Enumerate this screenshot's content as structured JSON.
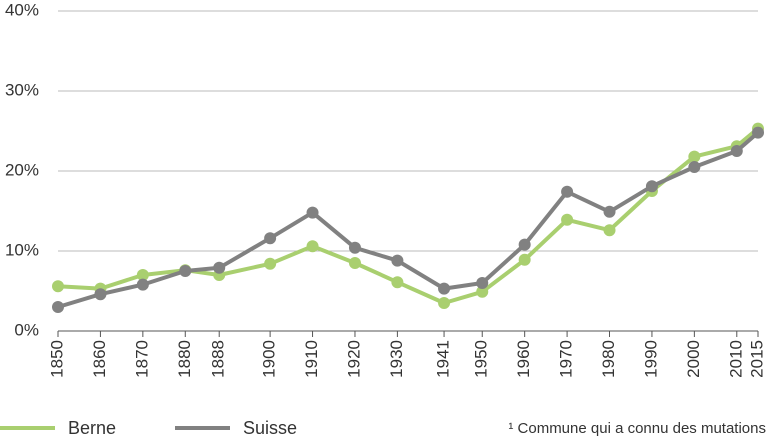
{
  "chart_data": {
    "type": "line",
    "x": [
      1850,
      1860,
      1870,
      1880,
      1888,
      1900,
      1910,
      1920,
      1930,
      1941,
      1950,
      1960,
      1970,
      1980,
      1990,
      2000,
      2010,
      2015
    ],
    "series": [
      {
        "name": "Berne",
        "color": "#a9cf6f",
        "values": [
          5.6,
          5.3,
          7.0,
          7.6,
          7.0,
          8.4,
          10.6,
          8.5,
          6.1,
          3.5,
          4.9,
          8.9,
          13.9,
          12.6,
          17.5,
          21.8,
          23.1,
          25.3
        ]
      },
      {
        "name": "Suisse",
        "color": "#818181",
        "values": [
          3.0,
          4.6,
          5.8,
          7.5,
          7.9,
          11.6,
          14.8,
          10.4,
          8.8,
          5.3,
          6.0,
          10.8,
          17.4,
          14.9,
          18.1,
          20.5,
          22.5,
          24.8
        ]
      }
    ],
    "xlim": [
      1850,
      2015
    ],
    "xticks": [
      1850,
      1860,
      1870,
      1880,
      1888,
      1900,
      1910,
      1920,
      1930,
      1941,
      1950,
      1960,
      1970,
      1980,
      1990,
      2000,
      2010,
      2015
    ],
    "ylim": [
      0,
      40
    ],
    "yticks": [
      {
        "value": 0,
        "label": "0%"
      },
      {
        "value": 10,
        "label": "10%"
      },
      {
        "value": 20,
        "label": "20%"
      },
      {
        "value": 30,
        "label": "30%"
      },
      {
        "value": 40,
        "label": "40%"
      }
    ],
    "grid": true,
    "footnote": "¹ Commune qui a connu des mutations"
  }
}
